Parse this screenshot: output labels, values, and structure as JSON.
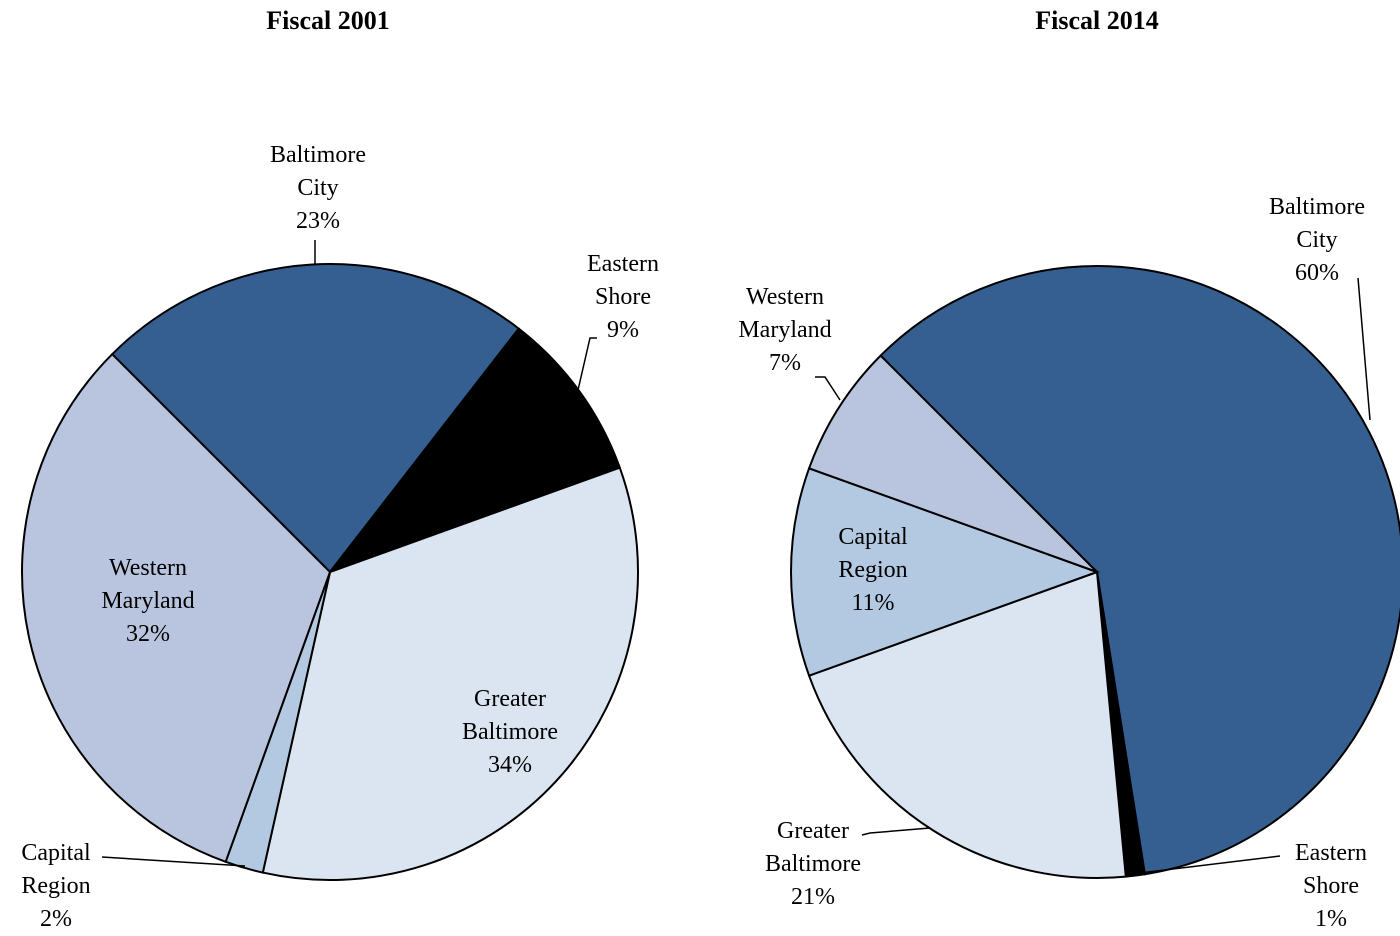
{
  "chart_data": [
    {
      "type": "pie",
      "title": "Fiscal 2001",
      "categories": [
        "Baltimore City",
        "Eastern Shore",
        "Greater Baltimore",
        "Capital Region",
        "Western Maryland"
      ],
      "values": [
        23,
        9,
        34,
        2,
        32
      ],
      "value_labels": [
        "23%",
        "9%",
        "34%",
        "2%",
        "32%"
      ],
      "colors": [
        "#365f91",
        "#000000",
        "#dbe5f1",
        "#b3c9e2",
        "#b9c5df"
      ]
    },
    {
      "type": "pie",
      "title": "Fiscal 2014",
      "categories": [
        "Baltimore City",
        "Eastern Shore",
        "Greater Baltimore",
        "Capital Region",
        "Western Maryland"
      ],
      "values": [
        60,
        1,
        21,
        11,
        7
      ],
      "value_labels": [
        "60%",
        "1%",
        "21%",
        "11%",
        "7%"
      ],
      "colors": [
        "#365f91",
        "#000000",
        "#dbe5f1",
        "#b3c9e2",
        "#b9c5df"
      ]
    }
  ]
}
